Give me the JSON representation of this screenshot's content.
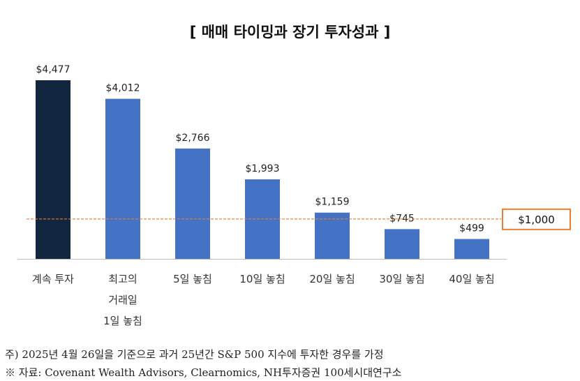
{
  "chart_data": {
    "type": "bar",
    "title": "[ 매매 타이밍과 장기 투자성과 ]",
    "categories": [
      "계속 투자",
      "최고의\n거래일\n1일 놓침",
      "5일 놓침",
      "10일 놓침",
      "20일 놓침",
      "30일 놓침",
      "40일 놓침"
    ],
    "values": [
      4477,
      4012,
      2766,
      1993,
      1159,
      745,
      499
    ],
    "value_labels": [
      "$4,477",
      "$4,012",
      "$2,766",
      "$1,993",
      "$1,159",
      "$745",
      "$499"
    ],
    "colors": [
      "#12263f",
      "#4472c4",
      "#4472c4",
      "#4472c4",
      "#4472c4",
      "#4472c4",
      "#4472c4"
    ],
    "reference_line": {
      "value": 1000,
      "label": "$1,000",
      "line_color": "#ed7d31"
    },
    "xlabel": "",
    "ylabel": "",
    "ylim": [
      0,
      4477
    ],
    "grid": false,
    "legend": "none"
  },
  "notes": [
    "주) 2025년 4월 26일을 기준으로 과거 25년간 S&P 500 지수에 투자한 경우를 가정",
    "※ 자료: Covenant Wealth Advisors, Clearnomics, NH투자증권 100세시대연구소"
  ]
}
